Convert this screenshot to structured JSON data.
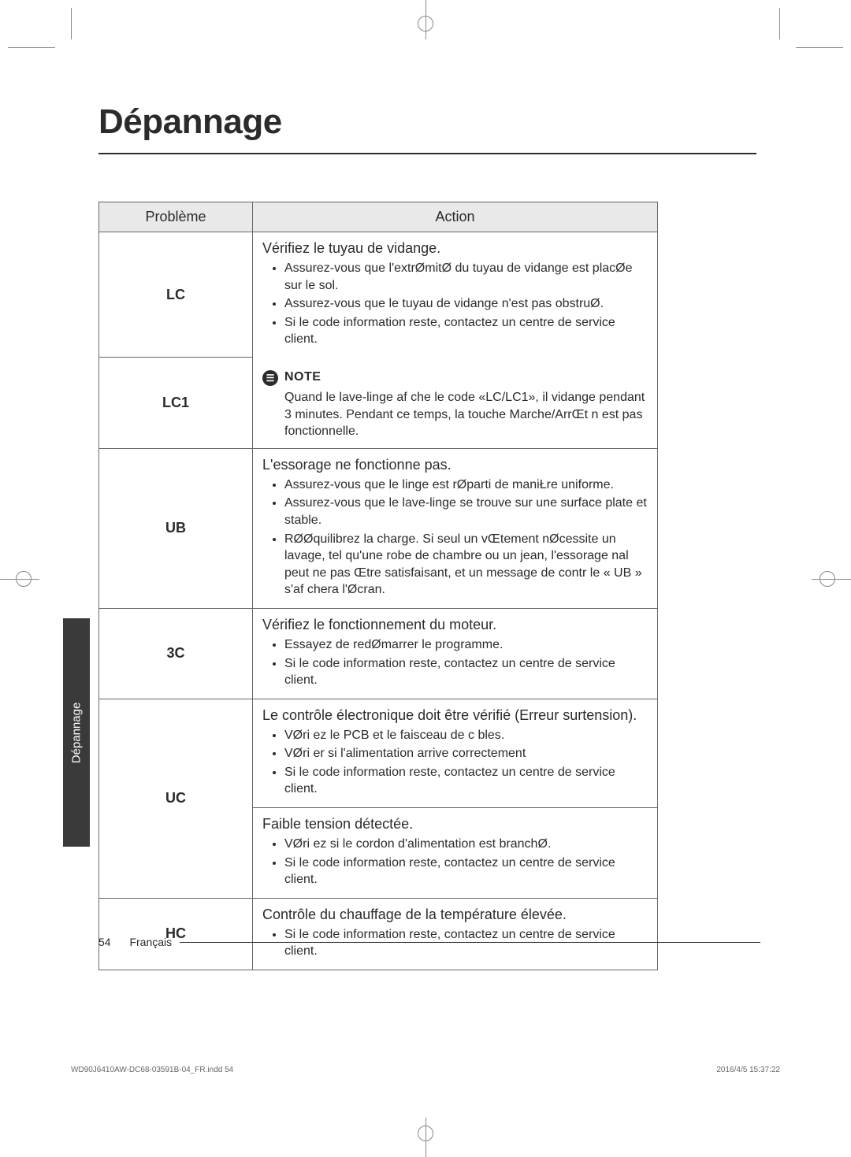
{
  "title": "Dépannage",
  "side_tab": "Dépannage",
  "table": {
    "headers": {
      "problem": "Problème",
      "action": "Action"
    },
    "rows": [
      {
        "code": "LC",
        "heading": "Vérifiez le tuyau de vidange.",
        "items": [
          "Assurez-vous que l'extrØmitØ du tuyau de vidange est placØe sur le sol.",
          "Assurez-vous que le tuyau de vidange n'est pas obstruØ.",
          "Si le code information reste, contactez un centre de service client."
        ]
      },
      {
        "code": "LC1",
        "note_label": "NOTE",
        "note_text": "Quand le lave-linge af che le code «LC/LC1», il vidange pendant 3 minutes. Pendant ce temps, la touche Marche/ArrŒt n est pas fonctionnelle."
      },
      {
        "code": "UB",
        "heading": "L'essorage ne fonctionne pas.",
        "items": [
          "Assurez-vous que le linge est rØparti de maniŁre uniforme.",
          "Assurez-vous que le lave-linge se trouve sur une surface plate et stable.",
          "RØØquilibrez la charge. Si seul un vŒtement nØcessite un lavage, tel qu'une robe de chambre ou un jean, l'essorage  nal peut ne pas Œtre satisfaisant, et un message de contr le « UB » s'af chera   l'Øcran."
        ]
      },
      {
        "code": "3C",
        "heading": "Vérifiez le fonctionnement du moteur.",
        "items": [
          "Essayez de redØmarrer le programme.",
          "Si le code information reste, contactez un centre de service client."
        ]
      },
      {
        "code": "UC",
        "sub": [
          {
            "heading": "Le contrôle électronique doit être vérifié (Erreur surtension).",
            "items": [
              "VØri ez le PCB et le faisceau de c bles.",
              "VØri er si l'alimentation arrive correctement",
              "Si le code information reste, contactez un centre de service client."
            ]
          },
          {
            "heading": "Faible tension détectée.",
            "items": [
              "VØri ez si le cordon d'alimentation est branchØ.",
              "Si le code information reste, contactez un centre de service client."
            ]
          }
        ]
      },
      {
        "code": "HC",
        "heading": "Contrôle du chauffage de la température élevée.",
        "items": [
          "Si le code information reste, contactez un centre de service client."
        ]
      }
    ]
  },
  "footer": {
    "page_num": "54",
    "lang": "Français"
  },
  "meta": {
    "left": "WD90J6410AW-DC68-03591B-04_FR.indd   54",
    "right": "2016/4/5   15:37:22"
  }
}
